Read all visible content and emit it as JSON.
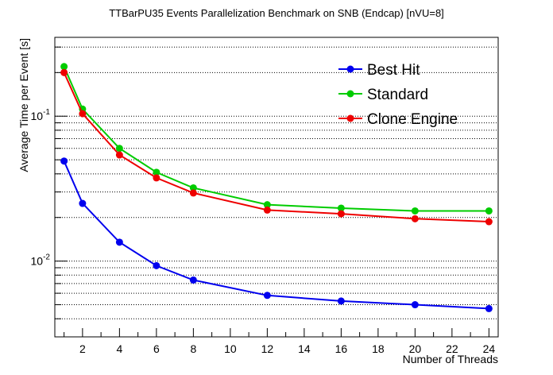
{
  "chart_data": {
    "type": "line",
    "title": "TTBarPU35 Events Parallelization Benchmark on SNB (Endcap) [nVU=8]",
    "xlabel": "Number of Threads",
    "ylabel": "Average Time per Event [s]",
    "xlim": [
      0.5,
      24.5
    ],
    "ylim": [
      0.003,
      0.35
    ],
    "yscale": "log",
    "grid": "horizontal",
    "legend_position": "top-right",
    "x": [
      1,
      2,
      4,
      6,
      8,
      12,
      16,
      20,
      24
    ],
    "x_ticks": [
      2,
      4,
      6,
      8,
      10,
      12,
      14,
      16,
      18,
      20,
      22,
      24
    ],
    "y_major_ticks": [
      {
        "value": 0.01,
        "base": "10",
        "exp": "-2"
      },
      {
        "value": 0.1,
        "base": "10",
        "exp": "-1"
      }
    ],
    "series": [
      {
        "name": "Best Hit",
        "color": "#0000ee",
        "values": [
          0.049,
          0.025,
          0.0135,
          0.0093,
          0.0074,
          0.0058,
          0.0053,
          0.005,
          0.0047
        ]
      },
      {
        "name": "Standard",
        "color": "#00cc00",
        "values": [
          0.22,
          0.112,
          0.06,
          0.041,
          0.032,
          0.0245,
          0.0232,
          0.0222,
          0.0222
        ]
      },
      {
        "name": "Clone Engine",
        "color": "#ee0000",
        "values": [
          0.2,
          0.104,
          0.054,
          0.0375,
          0.0295,
          0.0225,
          0.0212,
          0.0196,
          0.0187
        ]
      }
    ]
  }
}
